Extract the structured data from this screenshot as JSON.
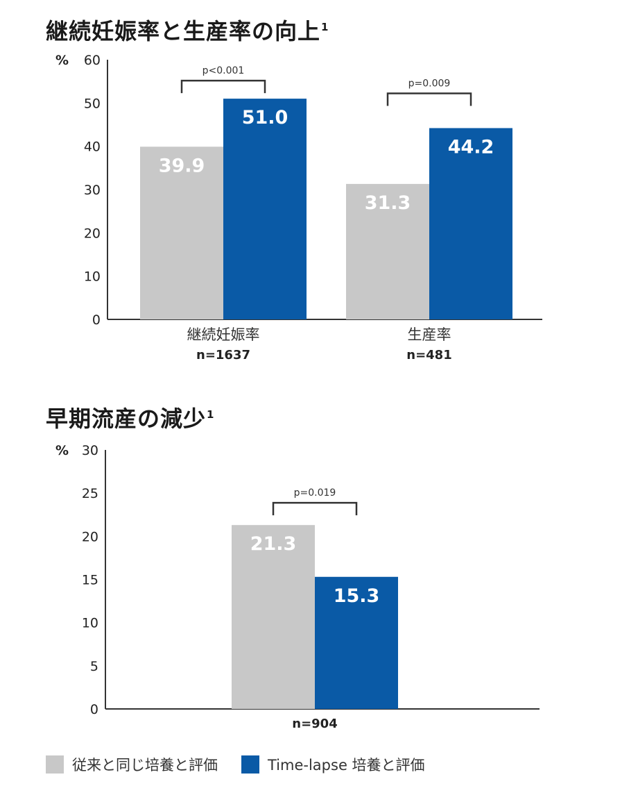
{
  "colors": {
    "gray": "#c8c8c8",
    "blue": "#0a5aa6",
    "axis": "#333333"
  },
  "legend": [
    {
      "label": "従来と同じ培養と評価",
      "color": "#c8c8c8"
    },
    {
      "label": "Time-lapse 培養と評価",
      "color": "#0a5aa6"
    }
  ],
  "chart_data": [
    {
      "type": "bar",
      "title": "継続妊娠率と生産率の向上",
      "title_sup": "1",
      "yunit": "%",
      "ylim": [
        0,
        60
      ],
      "yticks": [
        0,
        10,
        20,
        30,
        40,
        50,
        60
      ],
      "categories": [
        "継続妊娠率",
        "生産率"
      ],
      "category_n": [
        "n=1637",
        "n=481"
      ],
      "series": [
        {
          "name": "従来と同じ培養と評価",
          "values": [
            39.9,
            31.3
          ],
          "labels": [
            "39.9",
            "31.3"
          ]
        },
        {
          "name": "Time-lapse 培養と評価",
          "values": [
            51.0,
            44.2
          ],
          "labels": [
            "51.0",
            "44.2"
          ]
        }
      ],
      "pvalues": [
        "p<0.001",
        "p=0.009"
      ],
      "grid": false,
      "legend_position": "bottom-left"
    },
    {
      "type": "bar",
      "title": "早期流産の減少",
      "title_sup": "1",
      "yunit": "%",
      "ylim": [
        0,
        30
      ],
      "yticks": [
        0,
        5,
        10,
        15,
        20,
        25,
        30
      ],
      "categories": [
        ""
      ],
      "category_n": [
        "n=904"
      ],
      "series": [
        {
          "name": "従来と同じ培養と評価",
          "values": [
            21.3
          ],
          "labels": [
            "21.3"
          ]
        },
        {
          "name": "Time-lapse 培養と評価",
          "values": [
            15.3
          ],
          "labels": [
            "15.3"
          ]
        }
      ],
      "pvalues": [
        "p=0.019"
      ],
      "grid": false,
      "legend_position": "bottom-left"
    }
  ]
}
